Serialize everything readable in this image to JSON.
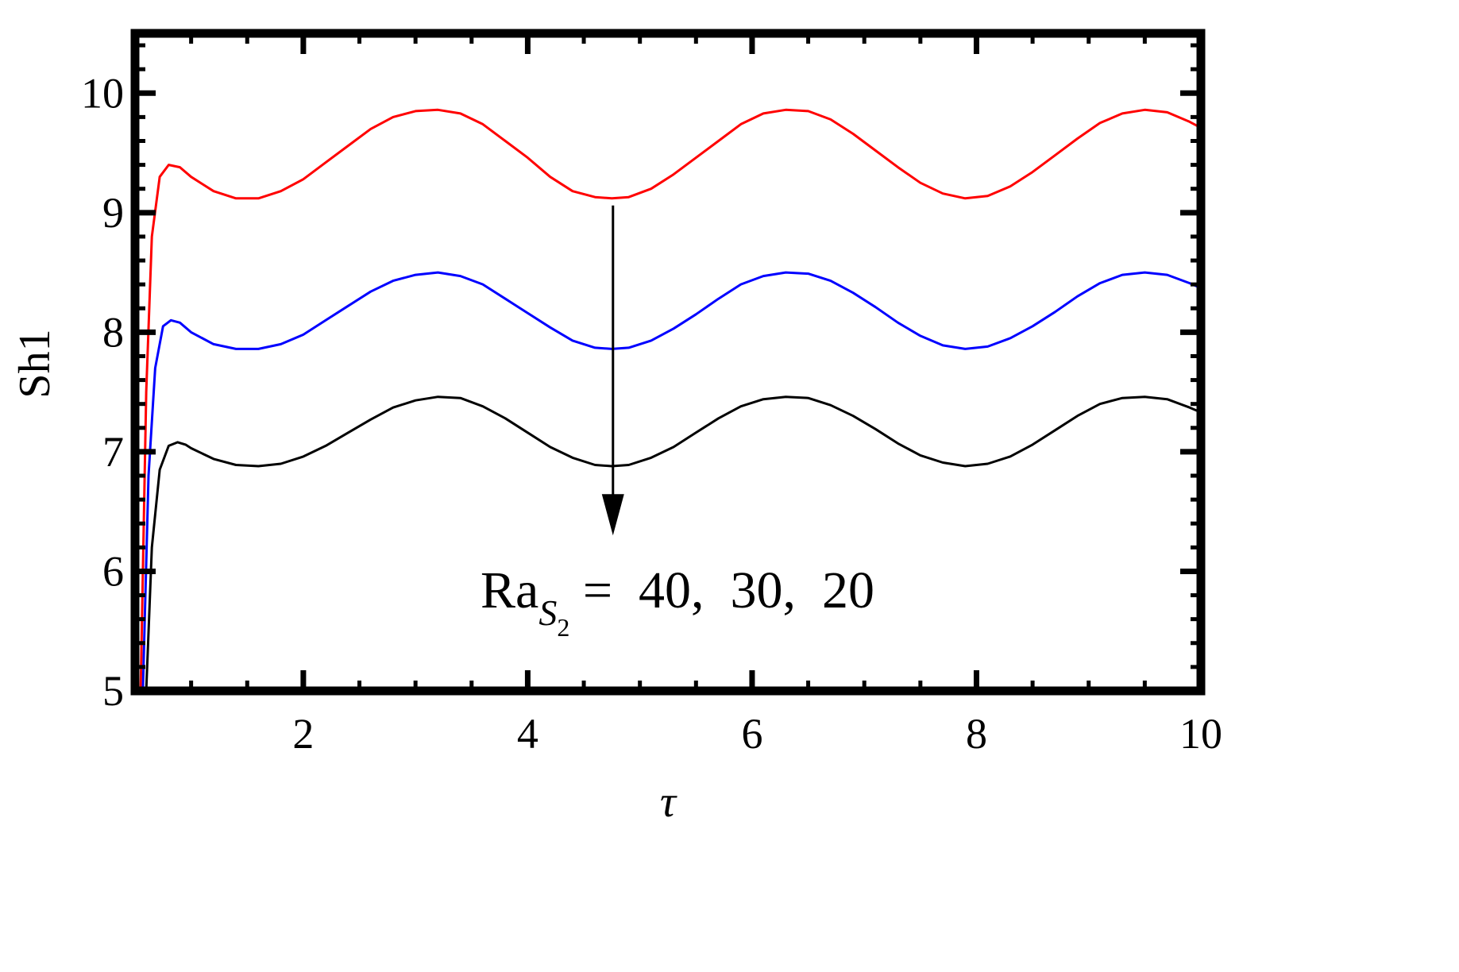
{
  "chart_data": {
    "type": "line",
    "xlabel": "τ",
    "ylabel": "Sh1",
    "xlim": [
      0.5,
      10
    ],
    "ylim": [
      5,
      10.5
    ],
    "x_ticks": [
      2,
      4,
      6,
      8,
      10
    ],
    "y_ticks": [
      5,
      6,
      7,
      8,
      9,
      10
    ],
    "grid": false,
    "series": [
      {
        "color": "#ff0000",
        "points": [
          [
            0.55,
            5.0
          ],
          [
            0.6,
            7.5
          ],
          [
            0.65,
            8.8
          ],
          [
            0.72,
            9.3
          ],
          [
            0.8,
            9.4
          ],
          [
            0.9,
            9.38
          ],
          [
            1.0,
            9.3
          ],
          [
            1.2,
            9.18
          ],
          [
            1.4,
            9.12
          ],
          [
            1.6,
            9.12
          ],
          [
            1.8,
            9.18
          ],
          [
            2.0,
            9.28
          ],
          [
            2.2,
            9.42
          ],
          [
            2.4,
            9.56
          ],
          [
            2.6,
            9.7
          ],
          [
            2.8,
            9.8
          ],
          [
            3.0,
            9.85
          ],
          [
            3.2,
            9.86
          ],
          [
            3.4,
            9.83
          ],
          [
            3.6,
            9.74
          ],
          [
            3.8,
            9.6
          ],
          [
            4.0,
            9.46
          ],
          [
            4.2,
            9.3
          ],
          [
            4.4,
            9.18
          ],
          [
            4.6,
            9.13
          ],
          [
            4.75,
            9.12
          ],
          [
            4.9,
            9.13
          ],
          [
            5.1,
            9.2
          ],
          [
            5.3,
            9.32
          ],
          [
            5.5,
            9.46
          ],
          [
            5.7,
            9.6
          ],
          [
            5.9,
            9.74
          ],
          [
            6.1,
            9.83
          ],
          [
            6.3,
            9.86
          ],
          [
            6.5,
            9.85
          ],
          [
            6.7,
            9.78
          ],
          [
            6.9,
            9.66
          ],
          [
            7.1,
            9.52
          ],
          [
            7.3,
            9.38
          ],
          [
            7.5,
            9.25
          ],
          [
            7.7,
            9.16
          ],
          [
            7.9,
            9.12
          ],
          [
            8.1,
            9.14
          ],
          [
            8.3,
            9.22
          ],
          [
            8.5,
            9.34
          ],
          [
            8.7,
            9.48
          ],
          [
            8.9,
            9.62
          ],
          [
            9.1,
            9.75
          ],
          [
            9.3,
            9.83
          ],
          [
            9.5,
            9.86
          ],
          [
            9.7,
            9.84
          ],
          [
            9.9,
            9.76
          ],
          [
            10.0,
            9.71
          ]
        ]
      },
      {
        "color": "#0000ff",
        "points": [
          [
            0.57,
            5.0
          ],
          [
            0.62,
            6.8
          ],
          [
            0.68,
            7.7
          ],
          [
            0.75,
            8.05
          ],
          [
            0.82,
            8.1
          ],
          [
            0.9,
            8.08
          ],
          [
            1.0,
            8.0
          ],
          [
            1.2,
            7.9
          ],
          [
            1.4,
            7.86
          ],
          [
            1.6,
            7.86
          ],
          [
            1.8,
            7.9
          ],
          [
            2.0,
            7.98
          ],
          [
            2.2,
            8.1
          ],
          [
            2.4,
            8.22
          ],
          [
            2.6,
            8.34
          ],
          [
            2.8,
            8.43
          ],
          [
            3.0,
            8.48
          ],
          [
            3.2,
            8.5
          ],
          [
            3.4,
            8.47
          ],
          [
            3.6,
            8.4
          ],
          [
            3.8,
            8.28
          ],
          [
            4.0,
            8.16
          ],
          [
            4.2,
            8.04
          ],
          [
            4.4,
            7.93
          ],
          [
            4.6,
            7.87
          ],
          [
            4.75,
            7.86
          ],
          [
            4.9,
            7.87
          ],
          [
            5.1,
            7.93
          ],
          [
            5.3,
            8.03
          ],
          [
            5.5,
            8.15
          ],
          [
            5.7,
            8.28
          ],
          [
            5.9,
            8.4
          ],
          [
            6.1,
            8.47
          ],
          [
            6.3,
            8.5
          ],
          [
            6.5,
            8.49
          ],
          [
            6.7,
            8.43
          ],
          [
            6.9,
            8.33
          ],
          [
            7.1,
            8.21
          ],
          [
            7.3,
            8.08
          ],
          [
            7.5,
            7.97
          ],
          [
            7.7,
            7.89
          ],
          [
            7.9,
            7.86
          ],
          [
            8.1,
            7.88
          ],
          [
            8.3,
            7.95
          ],
          [
            8.5,
            8.05
          ],
          [
            8.7,
            8.17
          ],
          [
            8.9,
            8.3
          ],
          [
            9.1,
            8.41
          ],
          [
            9.3,
            8.48
          ],
          [
            9.5,
            8.5
          ],
          [
            9.7,
            8.48
          ],
          [
            9.9,
            8.41
          ],
          [
            10.0,
            8.37
          ]
        ]
      },
      {
        "color": "#000000",
        "points": [
          [
            0.6,
            5.0
          ],
          [
            0.65,
            6.2
          ],
          [
            0.72,
            6.85
          ],
          [
            0.8,
            7.05
          ],
          [
            0.88,
            7.08
          ],
          [
            0.95,
            7.06
          ],
          [
            1.0,
            7.03
          ],
          [
            1.2,
            6.94
          ],
          [
            1.4,
            6.89
          ],
          [
            1.6,
            6.88
          ],
          [
            1.8,
            6.9
          ],
          [
            2.0,
            6.96
          ],
          [
            2.2,
            7.05
          ],
          [
            2.4,
            7.16
          ],
          [
            2.6,
            7.27
          ],
          [
            2.8,
            7.37
          ],
          [
            3.0,
            7.43
          ],
          [
            3.2,
            7.46
          ],
          [
            3.4,
            7.45
          ],
          [
            3.6,
            7.38
          ],
          [
            3.8,
            7.28
          ],
          [
            4.0,
            7.16
          ],
          [
            4.2,
            7.04
          ],
          [
            4.4,
            6.95
          ],
          [
            4.6,
            6.89
          ],
          [
            4.75,
            6.88
          ],
          [
            4.9,
            6.89
          ],
          [
            5.1,
            6.95
          ],
          [
            5.3,
            7.04
          ],
          [
            5.5,
            7.16
          ],
          [
            5.7,
            7.28
          ],
          [
            5.9,
            7.38
          ],
          [
            6.1,
            7.44
          ],
          [
            6.3,
            7.46
          ],
          [
            6.5,
            7.45
          ],
          [
            6.7,
            7.39
          ],
          [
            6.9,
            7.3
          ],
          [
            7.1,
            7.19
          ],
          [
            7.3,
            7.07
          ],
          [
            7.5,
            6.97
          ],
          [
            7.7,
            6.91
          ],
          [
            7.9,
            6.88
          ],
          [
            8.1,
            6.9
          ],
          [
            8.3,
            6.96
          ],
          [
            8.5,
            7.06
          ],
          [
            8.7,
            7.18
          ],
          [
            8.9,
            7.3
          ],
          [
            9.1,
            7.4
          ],
          [
            9.3,
            7.45
          ],
          [
            9.5,
            7.46
          ],
          [
            9.7,
            7.44
          ],
          [
            9.9,
            7.37
          ],
          [
            10.0,
            7.33
          ]
        ]
      }
    ],
    "annotation": {
      "text": "Ra",
      "subscript": "S",
      "subsubscript": "2",
      "suffix": " =  40,  30,  20",
      "arrow_from": [
        4.76,
        9.06
      ],
      "arrow_to": [
        4.76,
        6.3
      ]
    }
  }
}
